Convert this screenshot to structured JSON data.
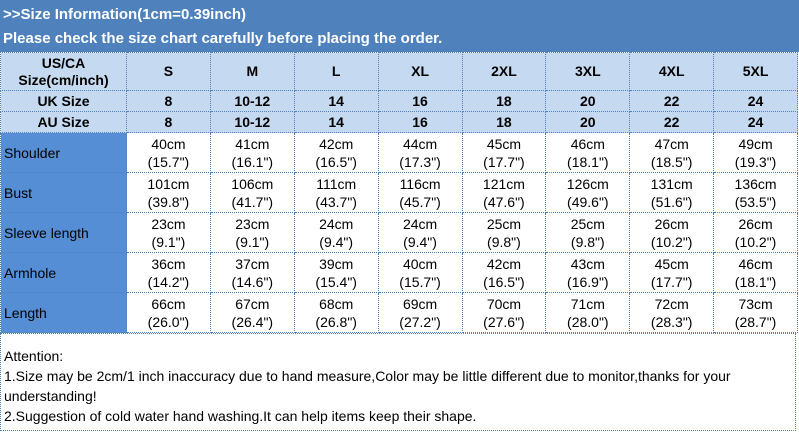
{
  "header": {
    "line1": ">>Size Information(1cm=0.39inch)",
    "line2": "Please check the size chart carefully before placing the order."
  },
  "table": {
    "corner": "US/CA Size(cm/inch)",
    "sizes": [
      "S",
      "M",
      "L",
      "XL",
      "2XL",
      "3XL",
      "4XL",
      "5XL"
    ],
    "uk": {
      "label": "UK Size",
      "values": [
        "8",
        "10-12",
        "14",
        "16",
        "18",
        "20",
        "22",
        "24"
      ]
    },
    "au": {
      "label": "AU Size",
      "values": [
        "8",
        "10-12",
        "14",
        "16",
        "18",
        "20",
        "22",
        "24"
      ]
    },
    "rows": [
      {
        "label": "Shoulder",
        "cm": [
          "40cm",
          "41cm",
          "42cm",
          "44cm",
          "45cm",
          "46cm",
          "47cm",
          "49cm"
        ],
        "in": [
          "(15.7\")",
          "(16.1\")",
          "(16.5\")",
          "(17.3\")",
          "(17.7\")",
          "(18.1\")",
          "(18.5\")",
          "(19.3\")"
        ]
      },
      {
        "label": "Bust",
        "cm": [
          "101cm",
          "106cm",
          "111cm",
          "116cm",
          "121cm",
          "126cm",
          "131cm",
          "136cm"
        ],
        "in": [
          "(39.8\")",
          "(41.7\")",
          "(43.7\")",
          "(45.7\")",
          "(47.6\")",
          "(49.6\")",
          "(51.6\")",
          "(53.5\")"
        ]
      },
      {
        "label": "Sleeve length",
        "cm": [
          "23cm",
          "23cm",
          "24cm",
          "24cm",
          "25cm",
          "25cm",
          "26cm",
          "26cm"
        ],
        "in": [
          "(9.1\")",
          "(9.1\")",
          "(9.4\")",
          "(9.4\")",
          "(9.8\")",
          "(9.8\")",
          "(10.2\")",
          "(10.2\")"
        ]
      },
      {
        "label": "Armhole",
        "cm": [
          "36cm",
          "37cm",
          "39cm",
          "40cm",
          "42cm",
          "43cm",
          "45cm",
          "46cm"
        ],
        "in": [
          "(14.2\")",
          "(14.6\")",
          "(15.4\")",
          "(15.7\")",
          "(16.5\")",
          "(16.9\")",
          "(17.7\")",
          "(18.1\")"
        ]
      },
      {
        "label": "Length",
        "cm": [
          "66cm",
          "67cm",
          "68cm",
          "69cm",
          "70cm",
          "71cm",
          "72cm",
          "73cm"
        ],
        "in": [
          "(26.0\")",
          "(26.4\")",
          "(26.8\")",
          "(27.2\")",
          "(27.6\")",
          "(28.0\")",
          "(28.3\")",
          "(28.7\")"
        ]
      }
    ]
  },
  "attention": {
    "title": "Attention:",
    "note1": "1.Size may be 2cm/1 inch inaccuracy due to hand measure,Color may be little different due to monitor,thanks for your understanding!",
    "note2": "2.Suggestion of cold water hand washing.It can help items keep their shape."
  }
}
